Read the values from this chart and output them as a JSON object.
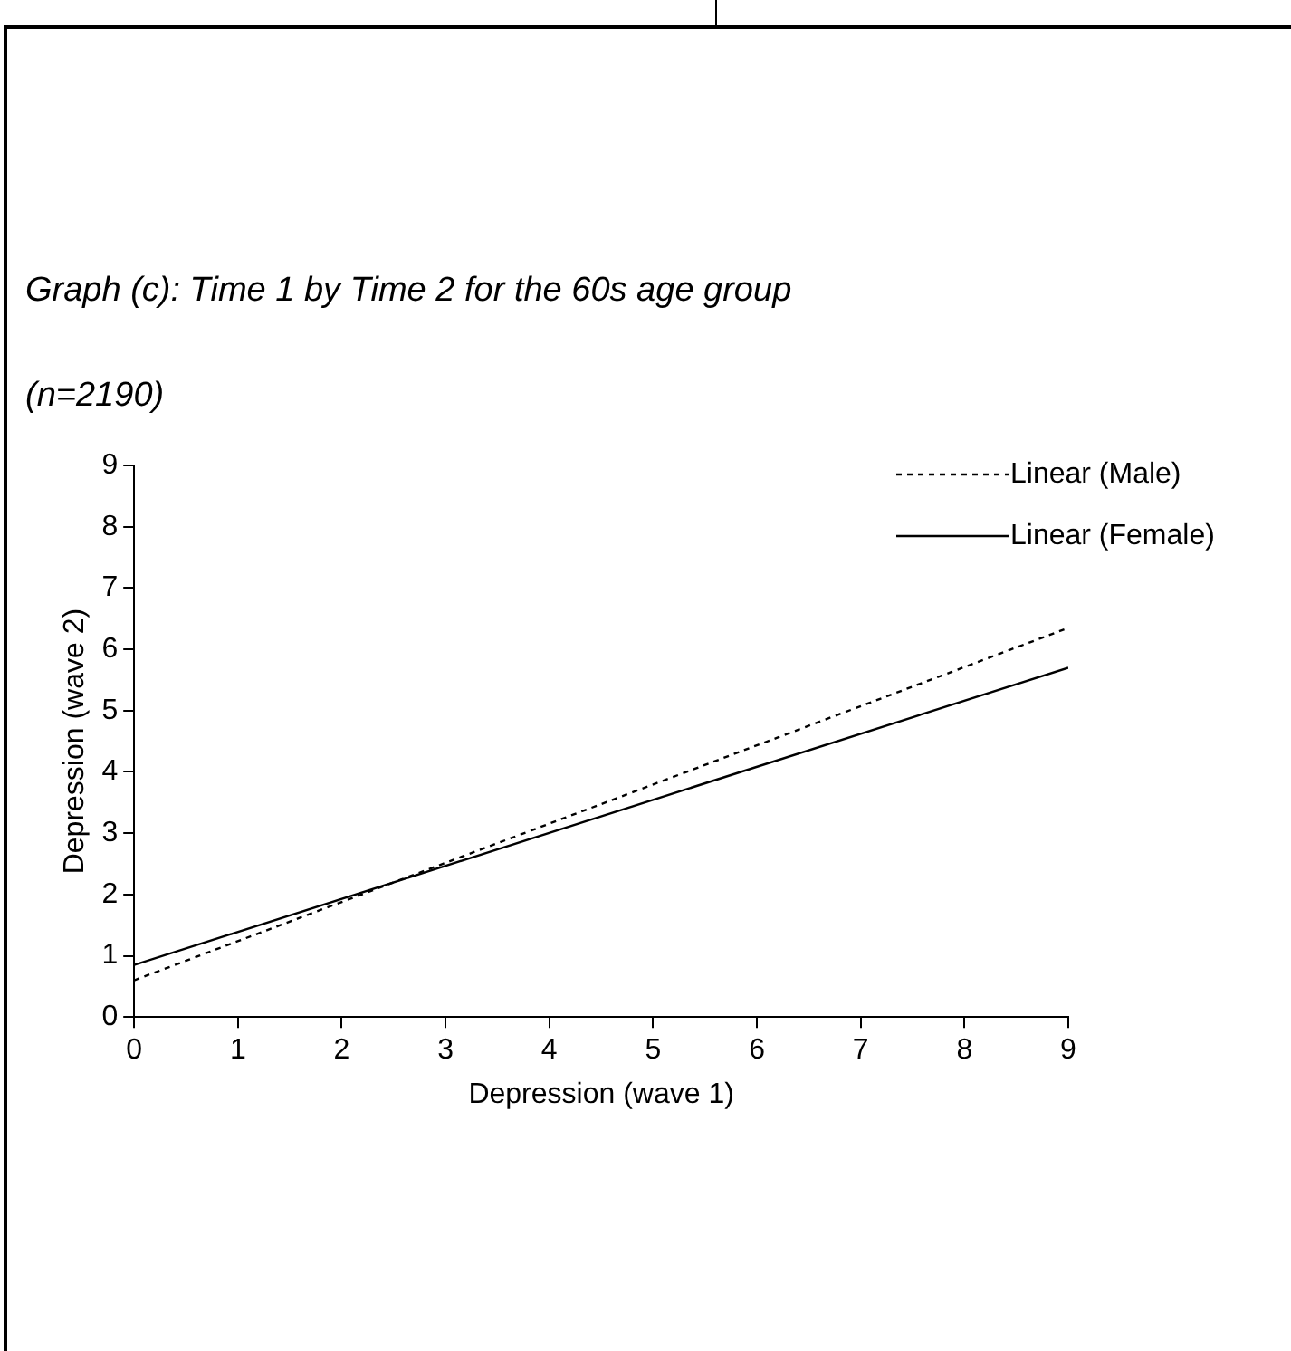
{
  "chart_data": {
    "type": "line",
    "title": "Graph (c): Time 1 by Time 2 for the 60s age group",
    "subtitle": "(n=2190)",
    "xlabel": "Depression (wave 1)",
    "ylabel": "Depression (wave 2)",
    "x": [
      0,
      9
    ],
    "series": [
      {
        "name": "Linear (Male)",
        "color": "#000000",
        "values": [
          0.6,
          6.35
        ],
        "line_style": "dotted"
      },
      {
        "name": "Linear (Female)",
        "color": "#000000",
        "values": [
          0.85,
          5.7
        ],
        "line_style": "solid"
      }
    ],
    "xlim": [
      0,
      9
    ],
    "xticks": [
      0,
      1,
      2,
      3,
      4,
      5,
      6,
      7,
      8,
      9
    ],
    "ylim": [
      0,
      9
    ],
    "yticks": [
      0,
      1,
      2,
      3,
      4,
      5,
      6,
      7,
      8,
      9
    ],
    "grid": false,
    "legend": "top right",
    "marker": "none"
  }
}
